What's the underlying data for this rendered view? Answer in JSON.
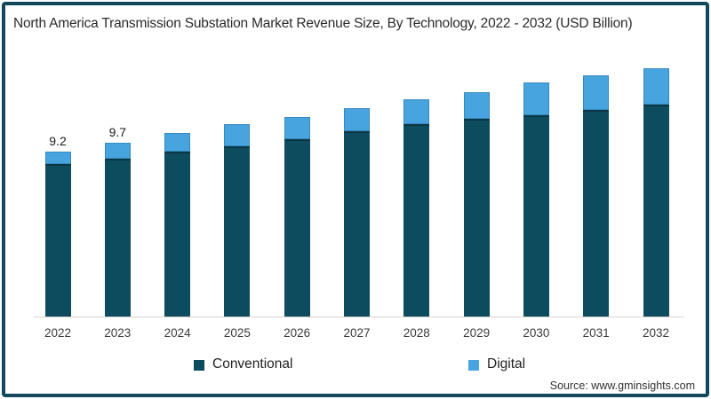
{
  "title": "North America Transmission Substation Market Revenue Size, By Technology, 2022 - 2032 (USD Billion)",
  "source": "Source: www.gminsights.com",
  "colors": {
    "frame": "#11485d",
    "conventional": "#0d4c5f",
    "digital": "#47a4de",
    "axis_line": "#d9d3cc",
    "title_text": "#2b2b2b"
  },
  "legend": {
    "items": [
      {
        "label": "Conventional",
        "color": "#0d4c5f"
      },
      {
        "label": "Digital",
        "color": "#47a4de"
      }
    ],
    "position": "bottom"
  },
  "chart_data": {
    "type": "bar",
    "subtype": "stacked",
    "title": "North America Transmission Substation Market Revenue Size, By Technology, 2022 - 2032 (USD Billion)",
    "unit": "USD Billion",
    "categories": [
      "2022",
      "2023",
      "2024",
      "2025",
      "2026",
      "2027",
      "2028",
      "2029",
      "2030",
      "2031",
      "2032"
    ],
    "series": [
      {
        "name": "Conventional",
        "color": "#0d4c5f",
        "values": [
          8.5,
          8.8,
          9.2,
          9.5,
          9.9,
          10.3,
          10.7,
          11.0,
          11.2,
          11.5,
          11.8
        ]
      },
      {
        "name": "Digital",
        "color": "#47a4de",
        "values": [
          0.7,
          0.9,
          1.0,
          1.2,
          1.2,
          1.3,
          1.4,
          1.5,
          1.8,
          1.9,
          2.0
        ]
      }
    ],
    "totals": [
      9.2,
      9.7,
      10.2,
      10.7,
      11.1,
      11.6,
      12.1,
      12.5,
      13.0,
      13.4,
      13.8
    ],
    "bar_value_labels": [
      "9.2",
      "9.7",
      "",
      "",
      "",
      "",
      "",
      "",
      "",
      "",
      ""
    ],
    "xlabel": "",
    "ylabel": "",
    "ylim": [
      0,
      14.5
    ],
    "grid": false,
    "legend_position": "bottom"
  }
}
